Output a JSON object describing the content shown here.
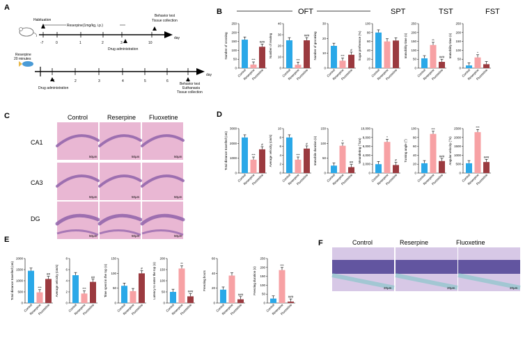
{
  "panels": {
    "A": "A",
    "B": "B",
    "C": "C",
    "D": "D",
    "E": "E",
    "F": "F"
  },
  "timeline1": {
    "ticks": [
      "-7",
      "0",
      "1",
      "2",
      "3",
      "10"
    ],
    "habituation": "Habituation",
    "reserpine": "Reserpine(1mg/kg, i.p.)",
    "drug": "Drug administration",
    "behavior": "Behavior test",
    "tissue": "Tissue collection",
    "day": "day"
  },
  "timeline2": {
    "ticks": [
      "1",
      "2",
      "3",
      "4",
      "5",
      "6",
      "7"
    ],
    "reserpine": "Reserpine",
    "minutes": "20 minutes",
    "drug": "Drug administration",
    "behavior": "Behavior test",
    "euthanasia": "Euthanasia",
    "tissue": "Tissue collection",
    "day": "day"
  },
  "groupsB": [
    "OFT",
    "SPT",
    "TST",
    "FST"
  ],
  "groups": [
    "Control",
    "Reserpine",
    "Fluoxetine"
  ],
  "histoC": {
    "cols": [
      "Control",
      "Reserpine",
      "Fluoxetine"
    ],
    "rows": [
      "CA1",
      "CA3",
      "DG"
    ],
    "scale": "50μm"
  },
  "histoF": {
    "cols": [
      "Control",
      "Reserpine",
      "Fluoxetine"
    ],
    "scale": "20μm"
  },
  "colors": {
    "control": "#2aa8e8",
    "reserpine": "#f7a1a4",
    "fluoxetine": "#9b3a3f"
  },
  "chart_data": [
    {
      "panel": "B",
      "type": "bar",
      "categories": [
        "Control",
        "Reserpine",
        "Fluoxetine"
      ],
      "values": [
        160,
        20,
        120
      ],
      "ylim": [
        0,
        250
      ],
      "yticks": [
        "0",
        "50",
        "100",
        "150",
        "200",
        "250"
      ],
      "ylabel": "Number of crossing",
      "sig": [
        "",
        "***",
        "###"
      ]
    },
    {
      "panel": "B",
      "type": "bar",
      "categories": [
        "Control",
        "Reserpine",
        "Fluoxetine"
      ],
      "values": [
        25,
        3,
        25
      ],
      "ylim": [
        0,
        40
      ],
      "yticks": [
        "0",
        "10",
        "20",
        "30",
        "40"
      ],
      "ylabel": "Number of rearing",
      "sig": [
        "",
        "***",
        "###"
      ]
    },
    {
      "panel": "B",
      "type": "bar",
      "categories": [
        "Control",
        "Reserpine",
        "Fluoxetine"
      ],
      "values": [
        15,
        5,
        9
      ],
      "ylim": [
        0,
        30
      ],
      "yticks": [
        "0",
        "10",
        "20",
        "30"
      ],
      "ylabel": "Number of grooming",
      "sig": [
        "",
        "***",
        "#"
      ]
    },
    {
      "panel": "B",
      "type": "bar",
      "categories": [
        "Control",
        "Reserpine",
        "Fluoxetine"
      ],
      "values": [
        80,
        60,
        62
      ],
      "ylim": [
        0,
        100
      ],
      "yticks": [
        "0",
        "20",
        "40",
        "60",
        "80",
        "100"
      ],
      "ylabel": "Sugar preference (%)",
      "sig": [
        "",
        "",
        ""
      ]
    },
    {
      "panel": "B",
      "type": "bar",
      "categories": [
        "Control",
        "Reserpine",
        "Fluoxetine"
      ],
      "values": [
        55,
        130,
        35
      ],
      "ylim": [
        0,
        250
      ],
      "yticks": [
        "0",
        "50",
        "100",
        "150",
        "200",
        "250"
      ],
      "ylabel": "Immobility time (s)",
      "sig": [
        "",
        "**",
        "###"
      ]
    },
    {
      "panel": "B",
      "type": "bar",
      "categories": [
        "Control",
        "Reserpine",
        "Fluoxetine"
      ],
      "values": [
        15,
        60,
        22
      ],
      "ylim": [
        0,
        250
      ],
      "yticks": [
        "0",
        "50",
        "100",
        "150",
        "200",
        "250"
      ],
      "ylabel": "Immobility time (s)",
      "sig": [
        "",
        "*",
        ""
      ]
    },
    {
      "panel": "D",
      "type": "bar",
      "categories": [
        "Control",
        "Reserpine",
        "Fluoxetine"
      ],
      "values": [
        2400,
        900,
        1600
      ],
      "ylim": [
        0,
        3000
      ],
      "yticks": [
        "0",
        "1000",
        "2000",
        "3000"
      ],
      "ylabel": "Total distance travelled (cm)",
      "sig": [
        "",
        "***",
        "#"
      ]
    },
    {
      "panel": "D",
      "type": "bar",
      "categories": [
        "Control",
        "Reserpine",
        "Fluoxetine"
      ],
      "values": [
        8,
        3,
        5.5
      ],
      "ylim": [
        0,
        10
      ],
      "yticks": [
        "0",
        "2",
        "4",
        "6",
        "8",
        "10"
      ],
      "ylabel": "Average velocity (cm/s)",
      "sig": [
        "",
        "***",
        "#"
      ]
    },
    {
      "panel": "D",
      "type": "bar",
      "categories": [
        "Control",
        "Reserpine",
        "Fluoxetine"
      ],
      "values": [
        25,
        92,
        20
      ],
      "ylim": [
        0,
        150
      ],
      "yticks": [
        "0",
        "50",
        "100",
        "150"
      ],
      "ylabel": "Immobile duration (s)",
      "sig": [
        "",
        "*",
        "##"
      ]
    },
    {
      "panel": "D",
      "type": "bar",
      "categories": [
        "Control",
        "Reserpine",
        "Fluoxetine"
      ],
      "values": [
        2000,
        7000,
        1800
      ],
      "ylim": [
        0,
        10000
      ],
      "yticks": [
        "0",
        "2,000",
        "4,000",
        "6,000",
        "8,000",
        "10,000"
      ],
      "ylabel": "Meandering (°/cm)",
      "sig": [
        "",
        "*",
        "#"
      ]
    },
    {
      "panel": "D",
      "type": "bar",
      "categories": [
        "Control",
        "Reserpine",
        "Fluoxetine"
      ],
      "values": [
        22,
        88,
        27
      ],
      "ylim": [
        0,
        100
      ],
      "yticks": [
        "0",
        "20",
        "40",
        "60",
        "80",
        "100"
      ],
      "ylabel": "Turning angle (°)",
      "sig": [
        "",
        "***",
        "###"
      ]
    },
    {
      "panel": "D",
      "type": "bar",
      "categories": [
        "Control",
        "Reserpine",
        "Fluoxetine"
      ],
      "values": [
        550,
        2300,
        620
      ],
      "ylim": [
        0,
        2500
      ],
      "yticks": [
        "0",
        "500",
        "1000",
        "1500",
        "2000",
        "2500"
      ],
      "ylabel": "Angular velocity (°/s)",
      "sig": [
        "",
        "***",
        "###"
      ]
    },
    {
      "panel": "E",
      "type": "bar",
      "categories": [
        "Control",
        "Reserpine",
        "Fluoxetine"
      ],
      "values": [
        1450,
        480,
        1080
      ],
      "ylim": [
        0,
        2000
      ],
      "yticks": [
        "0",
        "500",
        "1000",
        "1500",
        "2000"
      ],
      "ylabel": "Total distance travelled (cm)",
      "sig": [
        "",
        "***",
        "##"
      ]
    },
    {
      "panel": "E",
      "type": "bar",
      "categories": [
        "Control",
        "Reserpine",
        "Fluoxetine"
      ],
      "values": [
        5,
        1.7,
        3.8
      ],
      "ylim": [
        0,
        8
      ],
      "yticks": [
        "0",
        "2",
        "4",
        "6",
        "8"
      ],
      "ylabel": "Average velocity (cm/s)",
      "sig": [
        "",
        "***",
        "##"
      ]
    },
    {
      "panel": "E",
      "type": "bar",
      "categories": [
        "Control",
        "Reserpine",
        "Fluoxetine"
      ],
      "values": [
        58,
        40,
        100
      ],
      "ylim": [
        0,
        150
      ],
      "yticks": [
        "0",
        "50",
        "100",
        "150"
      ],
      "ylabel": "Time spent in the top (s)",
      "sig": [
        "",
        "",
        "#"
      ]
    },
    {
      "panel": "E",
      "type": "bar",
      "categories": [
        "Control",
        "Reserpine",
        "Fluoxetine"
      ],
      "values": [
        50,
        155,
        30
      ],
      "ylim": [
        0,
        200
      ],
      "yticks": [
        "0",
        "50",
        "100",
        "150",
        "200"
      ],
      "ylabel": "Latency to enter the top (s)",
      "sig": [
        "",
        "**",
        "###"
      ]
    },
    {
      "panel": "E",
      "type": "bar",
      "categories": [
        "Control",
        "Reserpine",
        "Fluoxetine"
      ],
      "values": [
        18,
        37,
        5
      ],
      "ylim": [
        0,
        60
      ],
      "yticks": [
        "0",
        "20",
        "40",
        "60"
      ],
      "ylabel": "Freezing bouts",
      "sig": [
        "",
        "",
        "###"
      ]
    },
    {
      "panel": "E",
      "type": "bar",
      "categories": [
        "Control",
        "Reserpine",
        "Fluoxetine"
      ],
      "values": [
        25,
        185,
        8
      ],
      "ylim": [
        0,
        250
      ],
      "yticks": [
        "0",
        "50",
        "100",
        "150",
        "200",
        "250"
      ],
      "ylabel": "Freezing duration (s)",
      "sig": [
        "",
        "***",
        "###"
      ]
    }
  ]
}
